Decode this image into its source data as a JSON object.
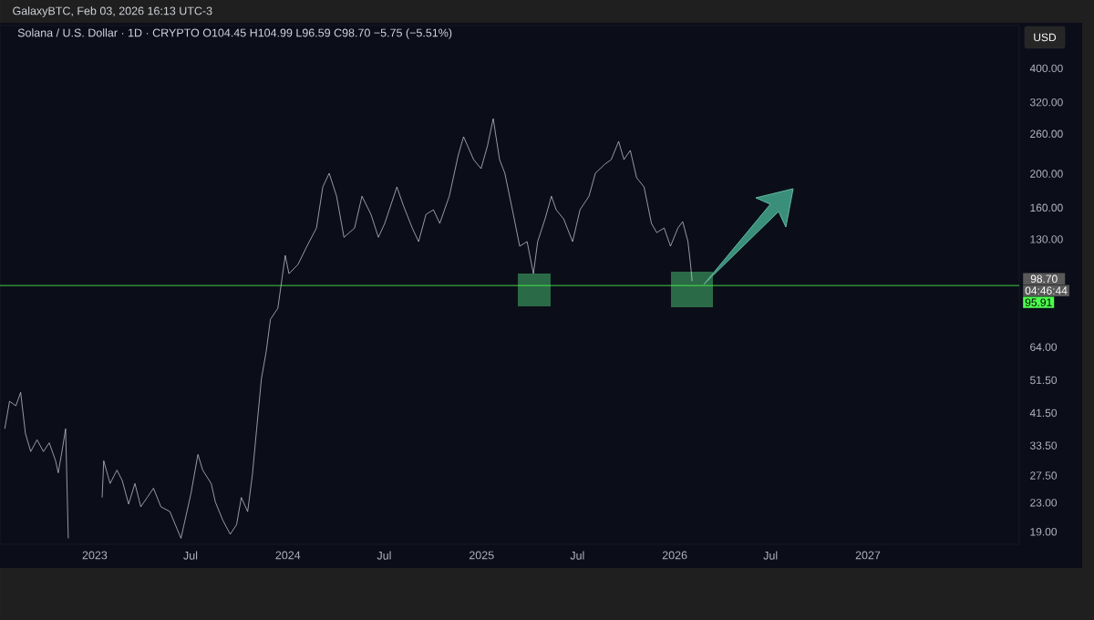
{
  "chart_data": {
    "type": "line",
    "title": "Solana / U.S. Dollar · 1D · CRYPTO  O104.45  H104.99  L96.59  C98.70  −5.75 (−5.51%)",
    "annotations": [
      "GalaxyBTC, Feb 03, 2026 16:13 UTC-3",
      "USD",
      "98.70",
      "04:46:44"
    ],
    "log": "y",
    "xlim": [
      "2022-07-06",
      "2027-10-14"
    ],
    "ylim": [
      17.5,
      530
    ],
    "xticks": [
      {
        "value": "2023-01-01",
        "label": "2023"
      },
      {
        "value": "2023-07-01",
        "label": "Jul"
      },
      {
        "value": "2024-01-01",
        "label": "2024"
      },
      {
        "value": "2024-07-01",
        "label": "Jul"
      },
      {
        "value": "2025-01-01",
        "label": "2025"
      },
      {
        "value": "2025-07-01",
        "label": "Jul"
      },
      {
        "value": "2026-01-01",
        "label": "2026"
      },
      {
        "value": "2026-07-01",
        "label": "Jul"
      },
      {
        "value": "2027-01-01",
        "label": "2027"
      }
    ],
    "yticks": [
      {
        "value": 19,
        "label": "19.00"
      },
      {
        "value": 23,
        "label": "23.00"
      },
      {
        "value": 27.5,
        "label": "27.50"
      },
      {
        "value": 33.5,
        "label": "33.50"
      },
      {
        "value": 41.5,
        "label": "41.50"
      },
      {
        "value": 51.5,
        "label": "51.50"
      },
      {
        "value": 64,
        "label": "64.00"
      },
      {
        "value": 130,
        "label": "130.00"
      },
      {
        "value": 160,
        "label": "160.00"
      },
      {
        "value": 200,
        "label": "200.00"
      },
      {
        "value": 260,
        "label": "260.00"
      },
      {
        "value": 320,
        "label": "320.00"
      },
      {
        "value": 400,
        "label": "400.00"
      }
    ],
    "ref_lines": [
      {
        "axis": "y",
        "value": 95.91,
        "label": "95.91",
        "color": "#4cff4c"
      }
    ],
    "series": [
      {
        "color": "#d1d4dc",
        "x": [
          "2022-07-15",
          "2022-07-24",
          "2022-08-05",
          "2022-08-14",
          "2022-08-23",
          "2022-09-02",
          "2022-09-14",
          "2022-09-26",
          "2022-10-07",
          "2022-10-19",
          "2022-10-24",
          "2022-10-31",
          "2022-11-07",
          "2022-11-12",
          "2022-12-15",
          "2023-01-15",
          "2023-01-18",
          "2023-01-30",
          "2023-02-12",
          "2023-02-22",
          "2023-03-06",
          "2023-03-18",
          "2023-03-29",
          "2023-04-10",
          "2023-04-22",
          "2023-05-06",
          "2023-05-23",
          "2023-06-06",
          "2023-06-13",
          "2023-07-02",
          "2023-07-15",
          "2023-07-24",
          "2023-08-09",
          "2023-08-17",
          "2023-08-31",
          "2023-09-14",
          "2023-09-26",
          "2023-10-05",
          "2023-10-17",
          "2023-10-26",
          "2023-11-03",
          "2023-11-12",
          "2023-11-21",
          "2023-11-29",
          "2023-12-13",
          "2023-12-27",
          "2024-01-03",
          "2024-01-20",
          "2024-02-06",
          "2024-02-24",
          "2024-03-07",
          "2024-03-19",
          "2024-04-02",
          "2024-04-16",
          "2024-05-06",
          "2024-05-20",
          "2024-06-06",
          "2024-06-20",
          "2024-07-02",
          "2024-07-25",
          "2024-08-06",
          "2024-08-23",
          "2024-09-04",
          "2024-09-18",
          "2024-10-02",
          "2024-10-14",
          "2024-11-01",
          "2024-11-18",
          "2024-11-28",
          "2024-12-17",
          "2024-12-31",
          "2025-01-12",
          "2025-01-23",
          "2025-02-04",
          "2025-02-14",
          "2025-03-02",
          "2025-03-14",
          "2025-03-28",
          "2025-04-09",
          "2025-04-17",
          "2025-05-01",
          "2025-05-13",
          "2025-05-22",
          "2025-06-05",
          "2025-06-22",
          "2025-07-06",
          "2025-07-23",
          "2025-08-04",
          "2025-08-22",
          "2025-09-03",
          "2025-09-17",
          "2025-09-27",
          "2025-10-09",
          "2025-10-21",
          "2025-11-04",
          "2025-11-18",
          "2025-11-28",
          "2025-12-12",
          "2025-12-24",
          "2026-01-07",
          "2026-01-16",
          "2026-01-26",
          "2026-01-30",
          "2026-02-03"
        ],
        "values": [
          37.4,
          44.8,
          43.5,
          47.5,
          36.3,
          32.2,
          34.8,
          32.2,
          34.1,
          30.3,
          28.0,
          32.2,
          37.4,
          18.2,
          null,
          23.8,
          30.3,
          26.1,
          28.5,
          26.6,
          22.8,
          26.1,
          22.4,
          23.8,
          25.3,
          22.4,
          21.7,
          19.3,
          18.2,
          24.5,
          31.6,
          28.5,
          26.1,
          23.1,
          20.5,
          18.7,
          19.9,
          23.8,
          21.7,
          27.7,
          37.4,
          52.0,
          62.1,
          76.8,
          82.6,
          116.9,
          103.7,
          110.1,
          124.2,
          140,
          183.4,
          200.6,
          172.6,
          131.7,
          140,
          172.6,
          153.1,
          131.7,
          144.3,
          183.4,
          162.6,
          140,
          128.0,
          153.1,
          157.8,
          144.3,
          172.6,
          226.2,
          255,
          219.5,
          206.8,
          239.7,
          287.3,
          219.5,
          200.6,
          153.1,
          124.2,
          128.0,
          103.7,
          128.0,
          148.7,
          172.6,
          157.8,
          148.7,
          128.0,
          157.8,
          172.6,
          200.6,
          213.0,
          219.5,
          247.4,
          219.5,
          233.1,
          194.8,
          183.4,
          144.3,
          135.8,
          140,
          124.2,
          140,
          146.0,
          128.0,
          113.3,
          98.7
        ]
      }
    ]
  }
}
